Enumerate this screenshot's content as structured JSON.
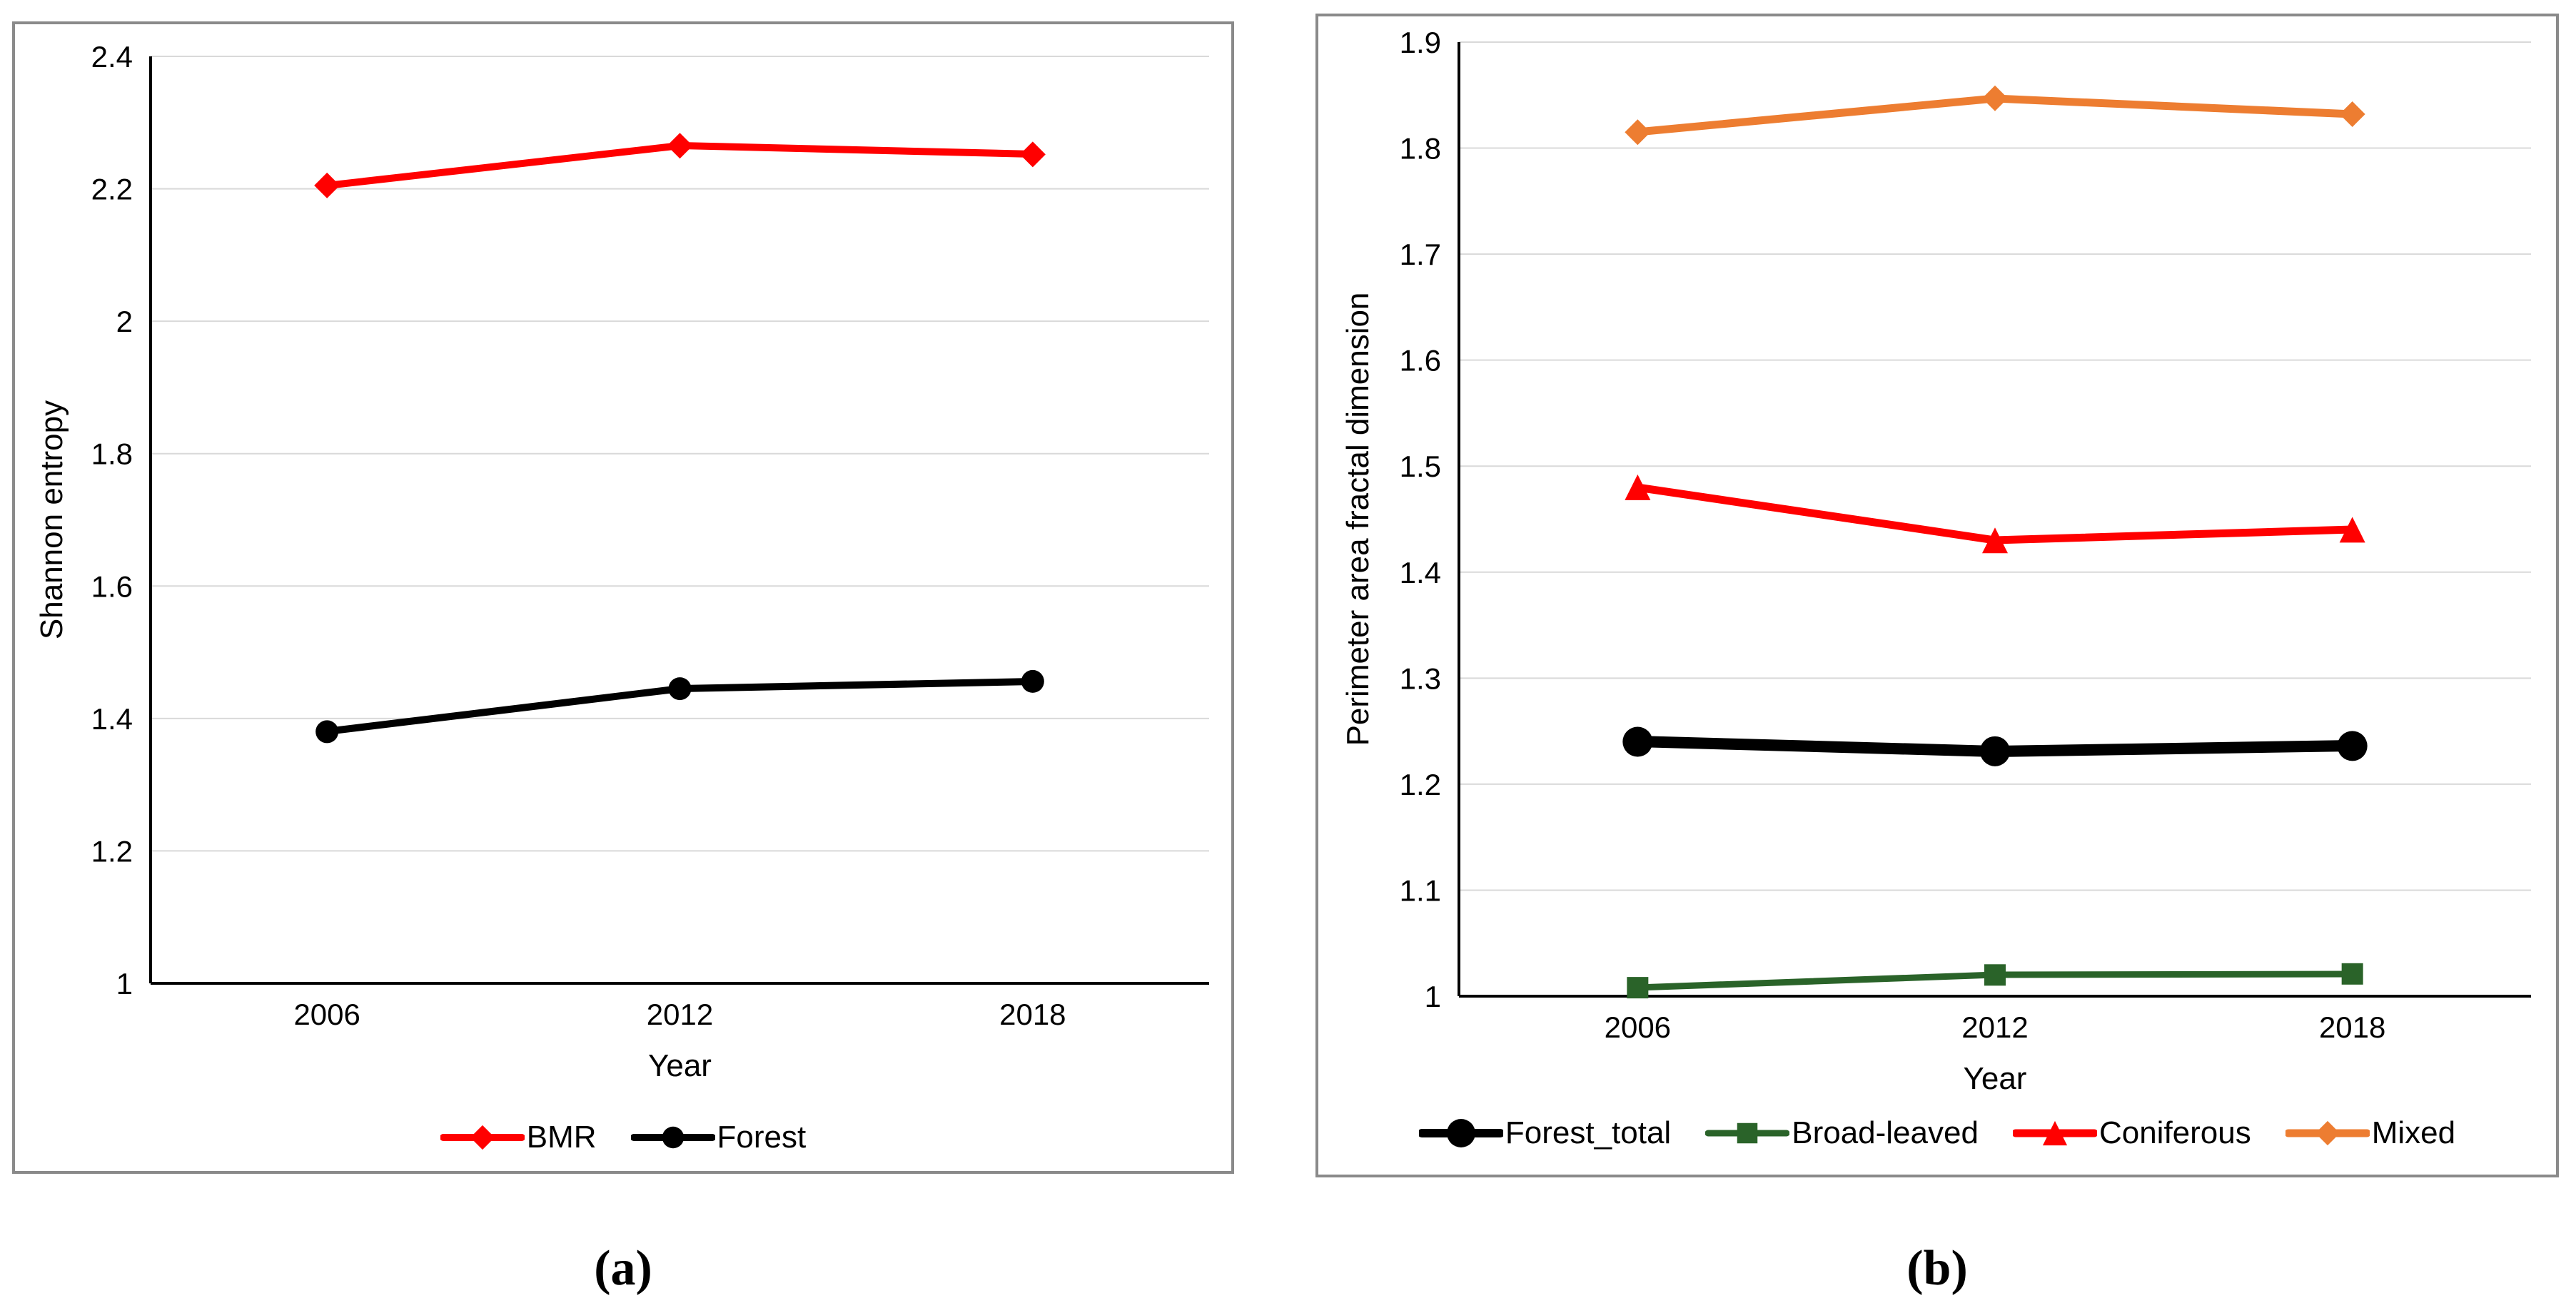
{
  "figure": {
    "captions": {
      "a": "(a)",
      "b": "(b)"
    }
  },
  "chart_data": [
    {
      "type": "line",
      "panel": "a",
      "title": "",
      "categories": [
        "2006",
        "2012",
        "2018"
      ],
      "xlabel": "Year",
      "ylabel": "Shannon entropy",
      "ylim": [
        1,
        2.4
      ],
      "ytick_labels": [
        "1",
        "1.2",
        "1.4",
        "1.6",
        "1.8",
        "2",
        "2.2",
        "2.4"
      ],
      "grid": true,
      "legend_position": "bottom",
      "gridline_color": "#d9d9d9",
      "axis_color": "#000000",
      "series": [
        {
          "name": "BMR",
          "color": "#ff0000",
          "marker": "diamond",
          "line_width": 10,
          "marker_size": 36,
          "values": [
            2.205,
            2.265,
            2.252
          ]
        },
        {
          "name": "Forest",
          "color": "#000000",
          "marker": "circle",
          "line_width": 10,
          "marker_size": 32,
          "values": [
            1.38,
            1.445,
            1.456
          ]
        }
      ]
    },
    {
      "type": "line",
      "panel": "b",
      "title": "",
      "categories": [
        "2006",
        "2012",
        "2018"
      ],
      "xlabel": "Year",
      "ylabel": "Perimeter area fractal dimension",
      "ylim": [
        1,
        1.9
      ],
      "ytick_labels": [
        "1",
        "1.1",
        "1.2",
        "1.3",
        "1.4",
        "1.5",
        "1.6",
        "1.7",
        "1.8",
        "1.9"
      ],
      "grid": true,
      "legend_position": "bottom",
      "gridline_color": "#d9d9d9",
      "axis_color": "#000000",
      "series": [
        {
          "name": "Forest_total",
          "color": "#000000",
          "marker": "circle",
          "line_width": 16,
          "marker_size": 42,
          "values": [
            1.24,
            1.231,
            1.236
          ]
        },
        {
          "name": "Broad-leaved",
          "color": "#2a6329",
          "marker": "square",
          "line_width": 9,
          "marker_size": 30,
          "values": [
            1.008,
            1.02,
            1.021
          ]
        },
        {
          "name": "Coniferous",
          "color": "#ff0000",
          "marker": "triangle",
          "line_width": 11,
          "marker_size": 36,
          "values": [
            1.48,
            1.43,
            1.44
          ]
        },
        {
          "name": "Mixed",
          "color": "#ed7d31",
          "marker": "diamond",
          "line_width": 11,
          "marker_size": 36,
          "values": [
            1.815,
            1.847,
            1.832
          ]
        }
      ]
    }
  ]
}
